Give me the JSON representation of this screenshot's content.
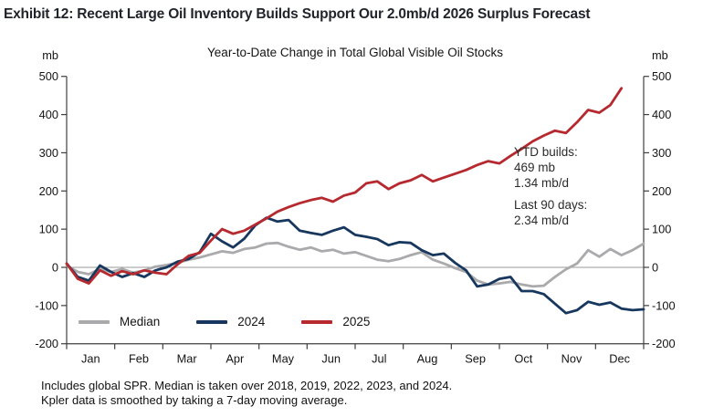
{
  "header": {
    "title": "Exhibit 12: Recent Large Oil Inventory Builds Support Our 2.0mb/d 2026 Surplus Forecast"
  },
  "chart": {
    "title": "Year-to-Date Change in Total Global Visible Oil Stocks",
    "unit_left": "mb",
    "unit_right": "mb",
    "annotation": {
      "line1": "YTD builds:",
      "line2": "469 mb",
      "line3": "1.34 mb/d",
      "line4": "Last 90 days:",
      "line5": "2.34 mb/d"
    }
  },
  "chart_data": {
    "type": "line",
    "title": "Year-to-Date Change in Total Global Visible Oil Stocks",
    "ylabel": "mb",
    "ylim": [
      -200,
      500
    ],
    "ytick_step": 100,
    "yticks": [
      500,
      400,
      300,
      200,
      100,
      0,
      -100,
      -200
    ],
    "x_months": [
      "Jan",
      "Feb",
      "Mar",
      "Apr",
      "May",
      "Jun",
      "Jul",
      "Aug",
      "Sep",
      "Oct",
      "Nov",
      "Dec"
    ],
    "grid": "horizontal zero-line only",
    "legend_position": "inside bottom-left",
    "axis_color": "#3f3f3f",
    "zero_line_color": "#9a9a9a",
    "series": [
      {
        "name": "Median",
        "color": "#aaaaad",
        "sampling": "weekly, Jan 1 - Dec 31",
        "values_mb": [
          5,
          -12,
          -18,
          -4,
          -12,
          -4,
          -14,
          -8,
          2,
          6,
          12,
          20,
          26,
          34,
          42,
          38,
          48,
          52,
          62,
          64,
          54,
          46,
          52,
          42,
          46,
          36,
          40,
          30,
          20,
          16,
          22,
          32,
          40,
          20,
          10,
          -2,
          -12,
          -35,
          -45,
          -42,
          -38,
          -45,
          -50,
          -48,
          -25,
          -5,
          10,
          45,
          28,
          48,
          32,
          45,
          62
        ]
      },
      {
        "name": "2024",
        "color": "#17375e",
        "sampling": "weekly, Jan 1 - Dec 31",
        "values_mb": [
          10,
          -25,
          -35,
          5,
          -12,
          -25,
          -15,
          -25,
          -8,
          0,
          15,
          22,
          40,
          88,
          68,
          52,
          75,
          110,
          130,
          120,
          124,
          96,
          90,
          85,
          96,
          105,
          85,
          80,
          74,
          58,
          66,
          64,
          45,
          32,
          36,
          12,
          -8,
          -50,
          -45,
          -30,
          -25,
          -62,
          -62,
          -70,
          -95,
          -120,
          -112,
          -90,
          -98,
          -92,
          -108,
          -112,
          -110
        ]
      },
      {
        "name": "2025",
        "color": "#b5292f",
        "sampling": "weekly, Jan 1 - mid-December (YTD)",
        "values_mb": [
          10,
          -30,
          -42,
          -8,
          -22,
          -10,
          -18,
          -8,
          -14,
          -18,
          8,
          30,
          38,
          70,
          100,
          88,
          96,
          112,
          128,
          146,
          158,
          168,
          176,
          182,
          172,
          188,
          196,
          220,
          225,
          205,
          220,
          228,
          242,
          225,
          235,
          245,
          255,
          268,
          278,
          272,
          292,
          310,
          330,
          345,
          358,
          352,
          380,
          412,
          405,
          425,
          469
        ]
      }
    ],
    "annotations": [
      "YTD builds: 469 mb, 1.34 mb/d",
      "Last 90 days: 2.34 mb/d"
    ]
  },
  "footnote": {
    "line1": "Includes global SPR. Median is taken over 2018, 2019, 2022, 2023, and 2024.",
    "line2": "Kpler data is smoothed by taking a 7-day moving average."
  }
}
